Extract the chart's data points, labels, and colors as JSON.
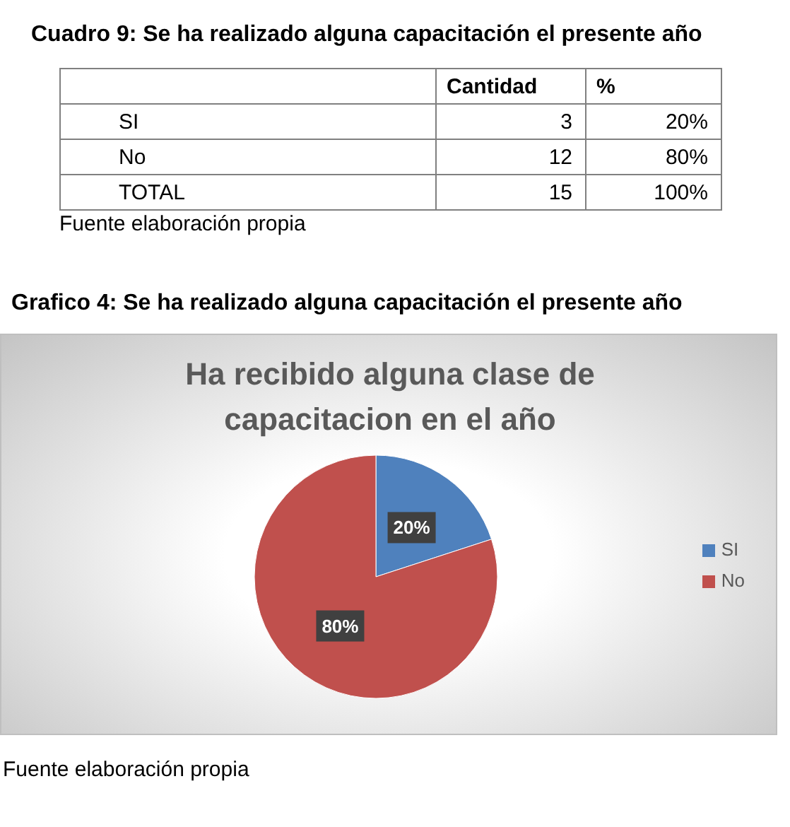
{
  "chart_data": [
    {
      "type": "other",
      "title": "Cuadro 9: Se ha realizado alguna capacitación el presente año",
      "categories": [
        "SI",
        "No",
        "TOTAL"
      ],
      "series": [
        {
          "name": "Cantidad",
          "values": [
            3,
            12,
            15
          ]
        },
        {
          "name": "%",
          "values": [
            20,
            80,
            100
          ],
          "value_labels": [
            "20%",
            "80%",
            "100%"
          ]
        }
      ],
      "data_labels": true,
      "annotations": [
        "Fuente elaboración propia"
      ]
    },
    {
      "type": "pie",
      "title": "Ha recibido alguna clase de capacitacion en el año",
      "categories": [
        "SI",
        "No"
      ],
      "values": [
        20,
        80
      ],
      "colors": [
        "#4f81bd",
        "#c0504d"
      ],
      "value_labels": [
        "20%",
        "80%"
      ],
      "legend": "right",
      "annotations": [
        "Grafico 4: Se ha realizado alguna capacitación el presente año",
        "Fuente elaboración propia"
      ]
    }
  ]
}
